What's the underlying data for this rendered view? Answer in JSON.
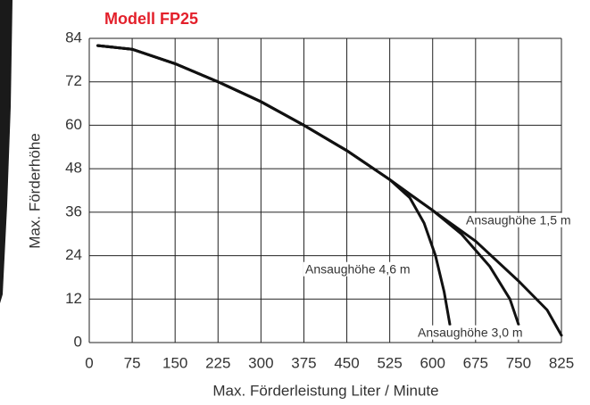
{
  "chart_data": {
    "type": "line",
    "title": "Modell FP25",
    "x_label": "Max. Förderleistung Liter / Minute",
    "y_label": "Max. Förderhöhe",
    "xlim": [
      0,
      825
    ],
    "ylim": [
      0,
      84
    ],
    "xticks": [
      0,
      75,
      150,
      225,
      300,
      375,
      450,
      525,
      600,
      675,
      750,
      825
    ],
    "yticks": [
      0,
      12,
      24,
      36,
      48,
      60,
      72,
      84
    ],
    "grid": true,
    "series": [
      {
        "name": "Ansaughöhe 1,5 m",
        "color": "#111111",
        "x": [
          15,
          75,
          150,
          225,
          300,
          375,
          450,
          525,
          560,
          600,
          675,
          750,
          800,
          825
        ],
        "values": [
          82,
          81,
          77,
          72,
          66.5,
          60,
          53,
          45,
          41,
          36.5,
          28,
          17,
          9,
          2
        ]
      },
      {
        "name": "Ansaughöhe 4,6 m",
        "color": "#111111",
        "x": [
          15,
          75,
          150,
          225,
          300,
          375,
          450,
          525,
          560,
          585,
          605,
          620,
          630
        ],
        "values": [
          82,
          81,
          77,
          72,
          66.5,
          60,
          53,
          45,
          40,
          33,
          24,
          14,
          5
        ]
      },
      {
        "name": "Ansaughöhe 3,0 m",
        "color": "#111111",
        "x": [
          15,
          75,
          150,
          225,
          300,
          375,
          450,
          525,
          560,
          600,
          650,
          700,
          735,
          750
        ],
        "values": [
          82,
          81,
          77,
          72,
          66.5,
          60,
          53,
          45,
          41,
          36.5,
          30,
          21,
          12,
          5
        ]
      }
    ]
  }
}
